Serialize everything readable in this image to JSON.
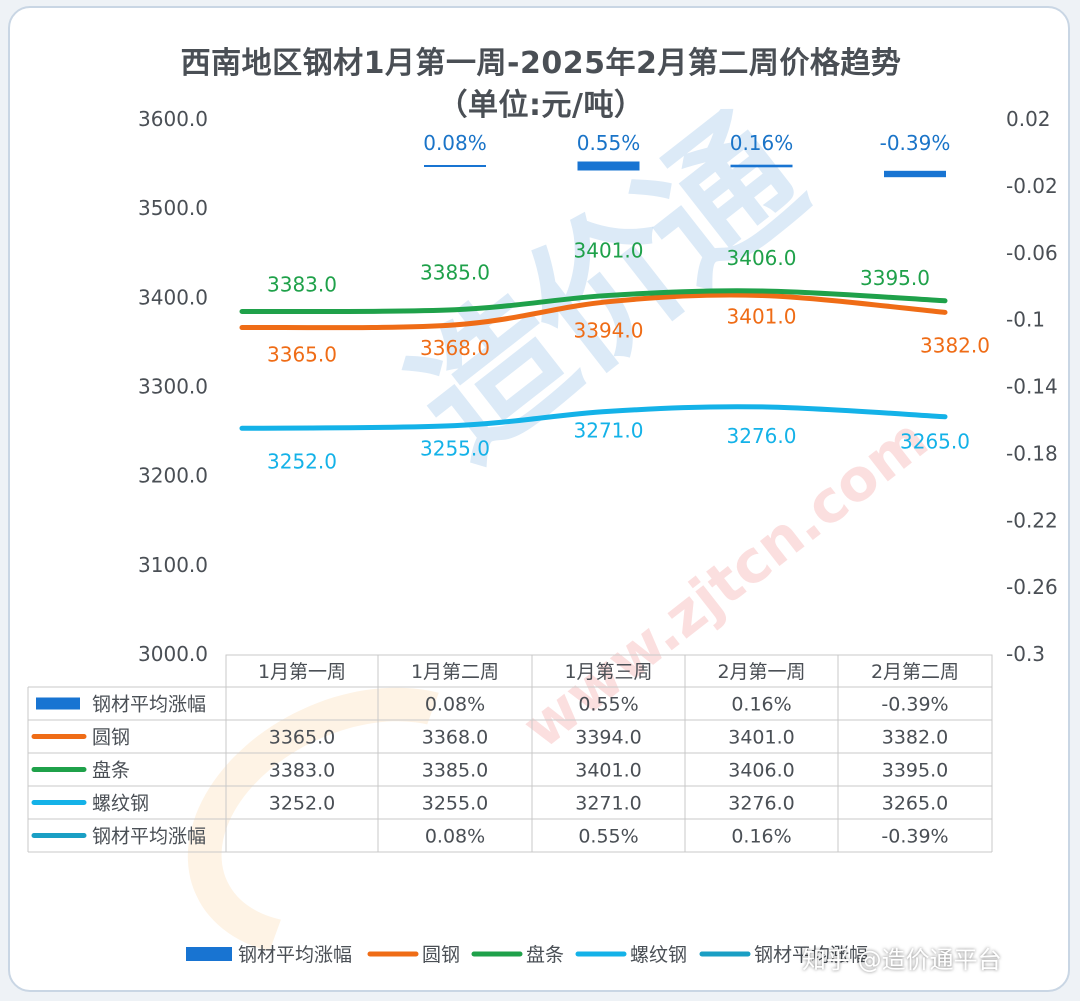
{
  "chart_data": {
    "type": "line",
    "title": "西南地区钢材1月第一周-2025年2月第二周价格趋势",
    "subtitle": "（单位:元/吨）",
    "categories": [
      "1月第一周",
      "1月第二周",
      "1月第三周",
      "2月第一周",
      "2月第二周"
    ],
    "y_left": {
      "min": 3000,
      "max": 3600,
      "ticks": [
        "3000.0",
        "3100.0",
        "3200.0",
        "3300.0",
        "3400.0",
        "3500.0",
        "3600.0"
      ]
    },
    "y_right": {
      "min": -0.3,
      "max": 0.02,
      "ticks": [
        "0.02",
        "-0.02",
        "-0.06",
        "-0.1",
        "-0.14",
        "-0.18",
        "-0.22",
        "-0.26",
        "-0.3"
      ]
    },
    "series": [
      {
        "name": "钢材平均涨幅",
        "kind": "bar",
        "color": "#1874d2",
        "values": [
          null,
          0.08,
          0.55,
          0.16,
          -0.39
        ],
        "labels": [
          "",
          "0.08%",
          "0.55%",
          "0.16%",
          "-0.39%"
        ]
      },
      {
        "name": "圆钢",
        "kind": "line",
        "color": "#ef6c16",
        "values": [
          3365.0,
          3368.0,
          3394.0,
          3401.0,
          3382.0
        ],
        "labels": [
          "3365.0",
          "3368.0",
          "3394.0",
          "3401.0",
          "3382.0"
        ]
      },
      {
        "name": "盘条",
        "kind": "line",
        "color": "#1fa14a",
        "values": [
          3383.0,
          3385.0,
          3401.0,
          3406.0,
          3395.0
        ],
        "labels": [
          "3383.0",
          "3385.0",
          "3401.0",
          "3406.0",
          "3395.0"
        ]
      },
      {
        "name": "螺纹钢",
        "kind": "line",
        "color": "#14b2e8",
        "values": [
          3252.0,
          3255.0,
          3271.0,
          3276.0,
          3265.0
        ],
        "labels": [
          "3252.0",
          "3255.0",
          "3271.0",
          "3276.0",
          "3265.0"
        ]
      },
      {
        "name": "钢材平均涨幅",
        "kind": "line",
        "color": "#1a9fc4",
        "values": [
          null,
          0.08,
          0.55,
          0.16,
          -0.39
        ],
        "labels": [
          "",
          "0.08%",
          "0.55%",
          "0.16%",
          "-0.39%"
        ]
      }
    ],
    "legend_position": "bottom",
    "data_table": true
  },
  "watermark": {
    "text": "www.zjtcn.com",
    "logo_text": "造价通"
  },
  "footer_credit": "知乎 @造价通平台"
}
